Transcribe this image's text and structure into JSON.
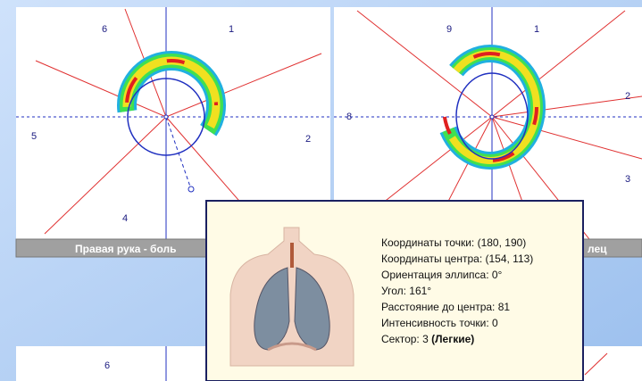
{
  "panels": [
    {
      "sector_labels": [
        "6",
        "1",
        "5",
        "2",
        "4"
      ],
      "caption": "Правая рука - боль"
    },
    {
      "sector_labels": [
        "9",
        "1",
        "8",
        "2",
        "3"
      ],
      "caption": "лец"
    },
    {
      "sector_labels": [
        "6"
      ]
    }
  ],
  "tooltip": {
    "lines": [
      "Координаты точки: (180, 190)",
      "Координаты центра: (154, 113)",
      "Ориентация эллипса: 0°",
      "Угол: 161°",
      "Расстояние до центра: 81",
      "Интенсивность точки: 0"
    ],
    "sector": "Сектор: 3",
    "sector_name": "(Легкие)"
  }
}
